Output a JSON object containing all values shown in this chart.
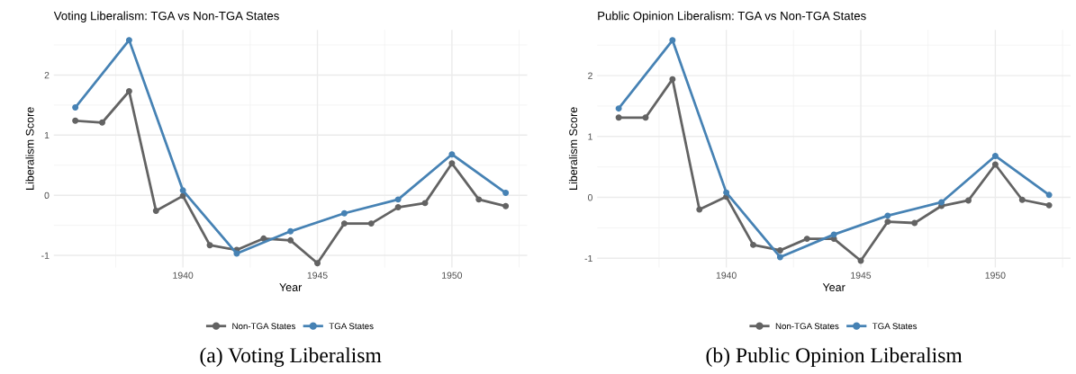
{
  "chart_data": [
    {
      "type": "line",
      "title": "Voting Liberalism: TGA vs Non-TGA States",
      "xlabel": "Year",
      "ylabel": "Liberalism Score",
      "marker": "circle",
      "line_style": "solid",
      "grid": true,
      "legend": "bottom",
      "xlim": [
        1935.2,
        1952.8
      ],
      "xticks": [
        1940,
        1945,
        1950
      ],
      "ylim": [
        -1.2,
        2.75
      ],
      "yticks": [
        -1,
        0,
        1,
        2
      ],
      "series": [
        {
          "name": "Non-TGA States",
          "color": "#636363",
          "x": [
            1936,
            1937,
            1938,
            1939,
            1940,
            1941,
            1942,
            1943,
            1944,
            1945,
            1946,
            1947,
            1948,
            1949,
            1950,
            1951,
            1952
          ],
          "values": [
            1.24,
            1.21,
            1.73,
            -0.26,
            -0.01,
            -0.83,
            -0.91,
            -0.72,
            -0.75,
            -1.13,
            -0.47,
            -0.47,
            -0.2,
            -0.13,
            0.53,
            -0.07,
            -0.18
          ]
        },
        {
          "name": "TGA States",
          "color": "#4682b4",
          "x": [
            1936,
            1938,
            1940,
            1942,
            1944,
            1946,
            1948,
            1950,
            1952
          ],
          "values": [
            1.46,
            2.58,
            0.08,
            -0.97,
            -0.6,
            -0.3,
            -0.07,
            0.68,
            0.04
          ]
        }
      ],
      "annotations": [
        "(a) Voting Liberalism"
      ]
    },
    {
      "type": "line",
      "title": "Public Opinion Liberalism: TGA vs Non-TGA States",
      "xlabel": "Year",
      "ylabel": "Liberalism Score",
      "marker": "circle",
      "line_style": "solid",
      "grid": true,
      "legend": "bottom",
      "xlim": [
        1935.2,
        1952.8
      ],
      "xticks": [
        1940,
        1945,
        1950
      ],
      "ylim": [
        -1.15,
        2.75
      ],
      "yticks": [
        -1,
        0,
        1,
        2
      ],
      "series": [
        {
          "name": "Non-TGA States",
          "color": "#636363",
          "x": [
            1936,
            1937,
            1938,
            1939,
            1940,
            1941,
            1942,
            1943,
            1944,
            1945,
            1946,
            1947,
            1948,
            1949,
            1950,
            1951,
            1952
          ],
          "values": [
            1.31,
            1.31,
            1.94,
            -0.2,
            0.01,
            -0.78,
            -0.87,
            -0.68,
            -0.68,
            -1.04,
            -0.4,
            -0.42,
            -0.14,
            -0.05,
            0.54,
            -0.04,
            -0.13
          ]
        },
        {
          "name": "TGA States",
          "color": "#4682b4",
          "x": [
            1936,
            1938,
            1940,
            1942,
            1944,
            1946,
            1948,
            1950,
            1952
          ],
          "values": [
            1.46,
            2.58,
            0.08,
            -0.98,
            -0.61,
            -0.3,
            -0.08,
            0.68,
            0.04
          ]
        }
      ],
      "annotations": [
        "(b) Public Opinion Liberalism"
      ]
    }
  ]
}
